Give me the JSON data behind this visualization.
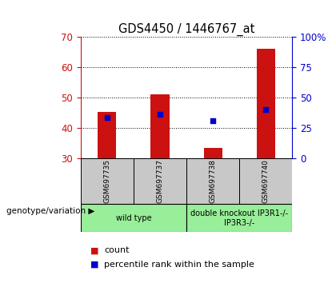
{
  "title": "GDS4450 / 1446767_at",
  "samples": [
    "GSM697735",
    "GSM697737",
    "GSM697738",
    "GSM697740"
  ],
  "bar_bottoms": [
    30,
    30,
    30,
    30
  ],
  "bar_tops": [
    45.3,
    51.0,
    33.5,
    66.0
  ],
  "percentile_values": [
    33.75,
    36.25,
    31.25,
    40.0
  ],
  "ylim_left": [
    30,
    70
  ],
  "ylim_right": [
    0,
    100
  ],
  "yticks_left": [
    30,
    40,
    50,
    60,
    70
  ],
  "yticks_right": [
    0,
    25,
    50,
    75,
    100
  ],
  "bar_color": "#cc1111",
  "percentile_color": "#0000cc",
  "bar_width": 0.35,
  "groups": [
    {
      "label": "wild type",
      "samples": [
        0,
        1
      ],
      "color": "#99ee99"
    },
    {
      "label": "double knockout IP3R1-/-\nIP3R3-/-",
      "samples": [
        2,
        3
      ],
      "color": "#99ee99"
    }
  ],
  "sample_box_color": "#c8c8c8",
  "legend_count_label": "count",
  "legend_pct_label": "percentile rank within the sample",
  "genotype_label": "genotype/variation"
}
